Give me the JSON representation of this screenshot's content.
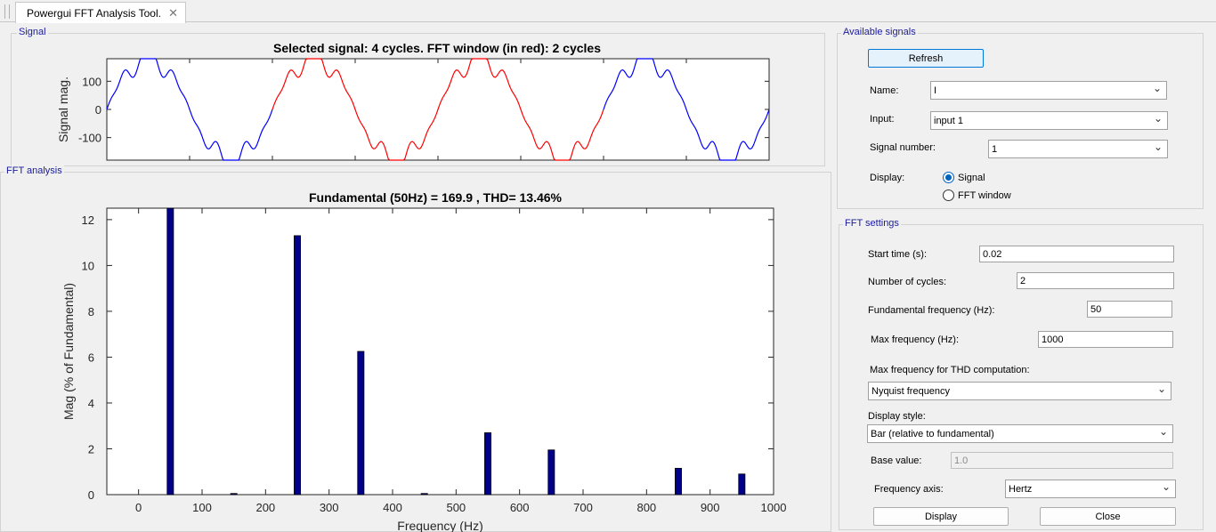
{
  "window": {
    "tab_label": "Powergui FFT Analysis Tool.",
    "close_glyph": "✕"
  },
  "signal_panel": {
    "title": "Signal",
    "plot_title": "Selected signal: 4 cycles. FFT window (in red): 2 cycles"
  },
  "fft_panel": {
    "title": "FFT analysis",
    "plot_title": "Fundamental (50Hz) = 169.9 , THD= 13.46%"
  },
  "available_signals": {
    "title": "Available signals",
    "refresh_label": "Refresh",
    "name_label": "Name:",
    "name_value": "I",
    "input_label": "Input:",
    "input_value": "input 1",
    "signal_number_label": "Signal number:",
    "signal_number_value": "1",
    "display_label": "Display:",
    "display_option_signal": "Signal",
    "display_option_fft": "FFT window",
    "display_selected": "Signal"
  },
  "fft_settings": {
    "title": "FFT settings",
    "start_time_label": "Start time (s):",
    "start_time_value": "0.02",
    "cycles_label": "Number of cycles:",
    "cycles_value": "2",
    "fund_freq_label": "Fundamental frequency (Hz):",
    "fund_freq_value": "50",
    "max_freq_label": "Max frequency (Hz):",
    "max_freq_value": "1000",
    "thd_label": "Max frequency for THD computation:",
    "thd_value": "Nyquist frequency",
    "display_style_label": "Display style:",
    "display_style_value": "Bar (relative to fundamental)",
    "base_value_label": "Base value:",
    "base_value_value": "1.0",
    "freq_axis_label": "Frequency axis:",
    "freq_axis_value": "Hertz",
    "display_button": "Display",
    "close_button": "Close"
  },
  "icons": {
    "dropdown": "chevron-down-icon",
    "tab_close": "close-icon"
  },
  "colors": {
    "signal_normal": "#0000ff",
    "signal_window": "#ff0000",
    "bar_fill": "#00008b",
    "panel_title": "#1a1aa0",
    "refresh_border": "#0078d7"
  },
  "chart_data": [
    {
      "type": "line",
      "title": "Selected signal: 4 cycles. FFT window (in red): 2 cycles",
      "xlabel": "",
      "ylabel": "Signal mag.",
      "xlim": [
        0,
        0.08
      ],
      "ylim": [
        -180,
        180
      ],
      "yticks": [
        -100,
        0,
        100
      ],
      "fft_window": [
        0.02,
        0.06
      ],
      "fundamental_hz": 50,
      "peak": 183
    },
    {
      "type": "bar",
      "title": "Fundamental (50Hz) = 169.9 , THD= 13.46%",
      "xlabel": "Frequency (Hz)",
      "ylabel": "Mag (% of Fundamental)",
      "xlim": [
        -50,
        1000
      ],
      "ylim": [
        0,
        12.5
      ],
      "xticks": [
        0,
        100,
        200,
        300,
        400,
        500,
        600,
        700,
        800,
        900,
        1000
      ],
      "yticks": [
        0,
        2,
        4,
        6,
        8,
        10,
        12
      ],
      "x": [
        50,
        150,
        250,
        350,
        450,
        550,
        650,
        850,
        950
      ],
      "values": [
        12.5,
        0.05,
        11.3,
        6.25,
        0.05,
        2.7,
        1.95,
        1.15,
        0.9
      ]
    }
  ]
}
